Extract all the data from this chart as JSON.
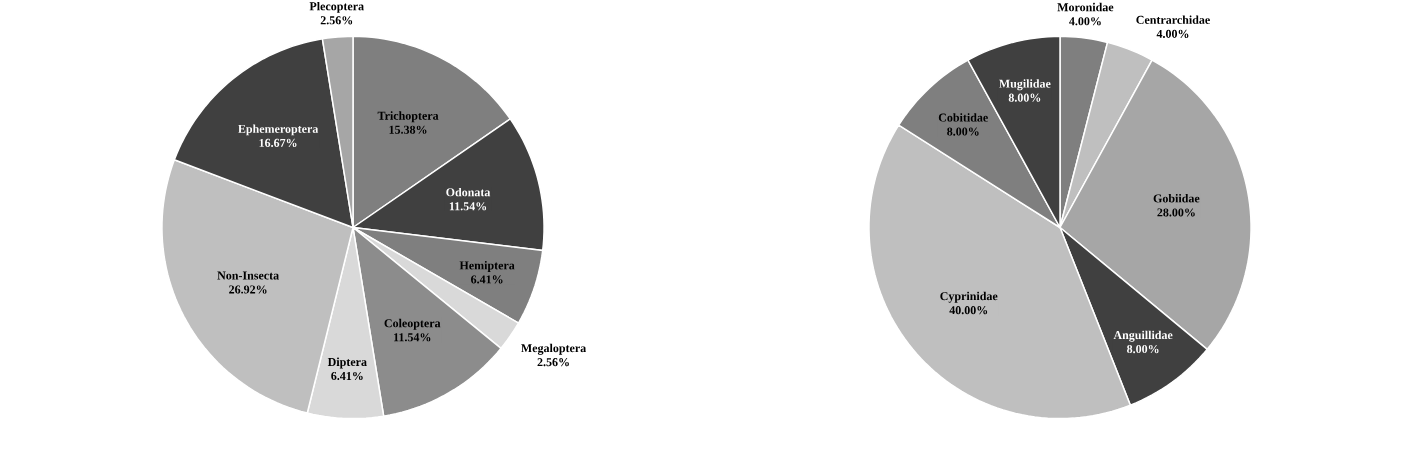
{
  "chart_data": [
    {
      "type": "pie",
      "categories": [
        "Trichoptera",
        "Odonata",
        "Hemiptera",
        "Megaloptera",
        "Coleoptera",
        "Diptera",
        "Non-Insecta",
        "Ephemeroptera",
        "Plecoptera"
      ],
      "values": [
        15.38,
        11.54,
        6.41,
        2.56,
        11.54,
        6.41,
        26.92,
        16.67,
        2.56
      ],
      "value_labels": [
        "15.38%",
        "11.54%",
        "6.41%",
        "2.56%",
        "11.54%",
        "6.41%",
        "26.92%",
        "16.67%",
        "2.56%"
      ],
      "colors": [
        "#7f7f7f",
        "#404040",
        "#7f7f7f",
        "#d9d9d9",
        "#8c8c8c",
        "#d9d9d9",
        "#bfbfbf",
        "#404040",
        "#a6a6a6"
      ]
    },
    {
      "type": "pie",
      "categories": [
        "Moronidae",
        "Centrarchidae",
        "Gobiidae",
        "Anguillidae",
        "Cyprinidae",
        "Cobitidae",
        "Mugilidae"
      ],
      "values": [
        4,
        4,
        28,
        8,
        40,
        8,
        8
      ],
      "value_labels": [
        "4.00%",
        "4.00%",
        "28.00%",
        "8.00%",
        "40.00%",
        "8.00%",
        "8.00%"
      ],
      "colors": [
        "#7f7f7f",
        "#bfbfbf",
        "#a6a6a6",
        "#404040",
        "#bfbfbf",
        "#7f7f7f",
        "#404040"
      ]
    }
  ]
}
